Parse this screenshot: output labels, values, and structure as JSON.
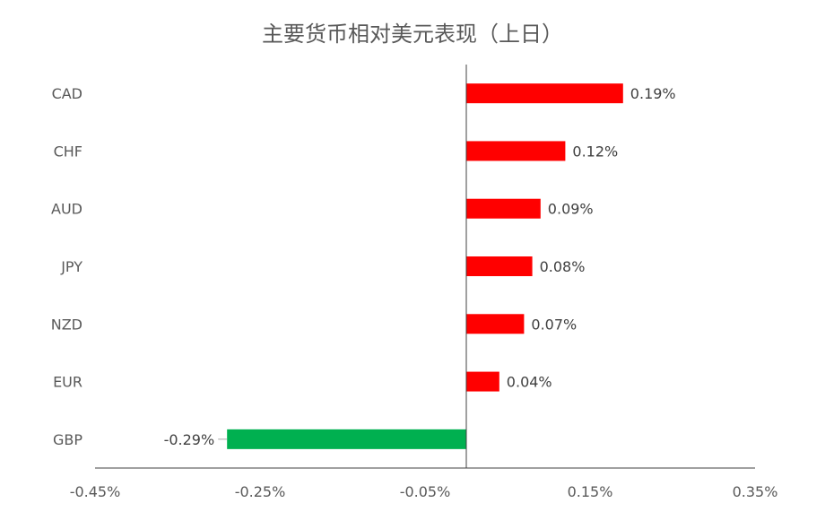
{
  "chart_data": {
    "type": "bar",
    "orientation": "horizontal",
    "title": "主要货币相对美元表现（上日）",
    "categories": [
      "CAD",
      "CHF",
      "AUD",
      "JPY",
      "NZD",
      "EUR",
      "GBP"
    ],
    "values": [
      0.19,
      0.12,
      0.09,
      0.08,
      0.07,
      0.04,
      -0.29
    ],
    "value_labels": [
      "0.19%",
      "0.12%",
      "0.09%",
      "0.08%",
      "0.07%",
      "0.04%",
      "-0.29%"
    ],
    "xlim": [
      -0.45,
      0.35
    ],
    "xticks": [
      -0.45,
      -0.25,
      -0.05,
      0.15,
      0.35
    ],
    "xtick_labels": [
      "-0.45%",
      "-0.25%",
      "-0.05%",
      "0.15%",
      "0.35%"
    ],
    "grid": false,
    "legend": "none",
    "colors": {
      "positive": "#ff0000",
      "negative": "#00b050"
    }
  }
}
